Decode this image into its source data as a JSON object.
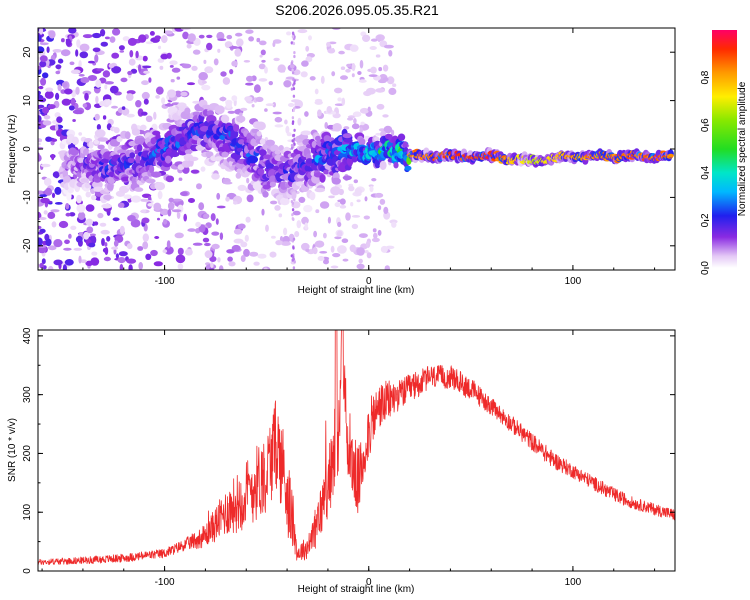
{
  "chart_data": [
    {
      "type": "heatmap",
      "title": "S206.2026.095.05.35.R21",
      "xlabel": "Height of straight line (km)",
      "ylabel": "Frequency (Hz)",
      "xlim": [
        -162,
        150
      ],
      "ylim": [
        -25,
        25
      ],
      "xticks": [
        -100,
        0,
        100
      ],
      "yticks": [
        -20,
        -10,
        0,
        10,
        20
      ],
      "colorbar": {
        "label": "Normalized spectral amplitude",
        "range": [
          0,
          1
        ],
        "ticks": [
          "0.0",
          "0.2",
          "0.4",
          "0.6",
          "0.8"
        ],
        "tick_values": [
          0.0,
          0.2,
          0.4,
          0.6,
          0.8
        ]
      },
      "ridge": {
        "description": "frequency of peak spectral amplitude vs height",
        "x": [
          -160,
          -130,
          -120,
          -110,
          -100,
          -90,
          -80,
          -70,
          -60,
          -50,
          -40,
          -30,
          -20,
          -10,
          0,
          10,
          20,
          40,
          60,
          80,
          100,
          120,
          150
        ],
        "y": [
          -2,
          -4,
          -3,
          -2,
          0,
          3,
          4,
          3,
          0,
          -4,
          -5,
          -3,
          -1,
          0,
          -1,
          0,
          -1.5,
          -1.5,
          -1.5,
          -2.5,
          -1.5,
          -1.5,
          -1.5
        ],
        "amplitude": [
          0.05,
          0.25,
          0.3,
          0.3,
          0.35,
          0.3,
          0.3,
          0.3,
          0.3,
          0.3,
          0.25,
          0.3,
          0.35,
          0.45,
          0.55,
          0.6,
          0.85,
          0.95,
          0.95,
          0.7,
          0.85,
          0.9,
          0.9
        ]
      }
    },
    {
      "type": "line",
      "xlabel": "Height of straight line (km)",
      "ylabel": "SNR (10 * v/v)",
      "xlim": [
        -162,
        150
      ],
      "ylim": [
        0,
        410
      ],
      "xticks": [
        -100,
        0,
        100
      ],
      "yticks": [
        0,
        100,
        200,
        300,
        400
      ],
      "series": [
        {
          "name": "SNR",
          "color": "#ee2a2a",
          "x": [
            -162,
            -140,
            -120,
            -100,
            -90,
            -80,
            -70,
            -60,
            -50,
            -45,
            -40,
            -35,
            -30,
            -25,
            -20,
            -15,
            -13,
            -10,
            -5,
            0,
            5,
            10,
            15,
            20,
            30,
            40,
            50,
            60,
            70,
            80,
            90,
            100,
            110,
            120,
            130,
            140,
            150
          ],
          "y": [
            15,
            18,
            22,
            30,
            45,
            60,
            100,
            130,
            170,
            220,
            140,
            30,
            40,
            80,
            150,
            210,
            380,
            200,
            150,
            240,
            280,
            290,
            300,
            310,
            330,
            330,
            310,
            280,
            250,
            220,
            190,
            170,
            150,
            130,
            115,
            105,
            95
          ],
          "fluctuation": [
            5,
            6,
            7,
            8,
            10,
            20,
            40,
            60,
            70,
            80,
            80,
            15,
            20,
            40,
            60,
            60,
            40,
            60,
            60,
            50,
            40,
            35,
            25,
            25,
            20,
            20,
            20,
            15,
            15,
            15,
            15,
            12,
            12,
            12,
            10,
            10,
            10
          ]
        }
      ]
    }
  ]
}
